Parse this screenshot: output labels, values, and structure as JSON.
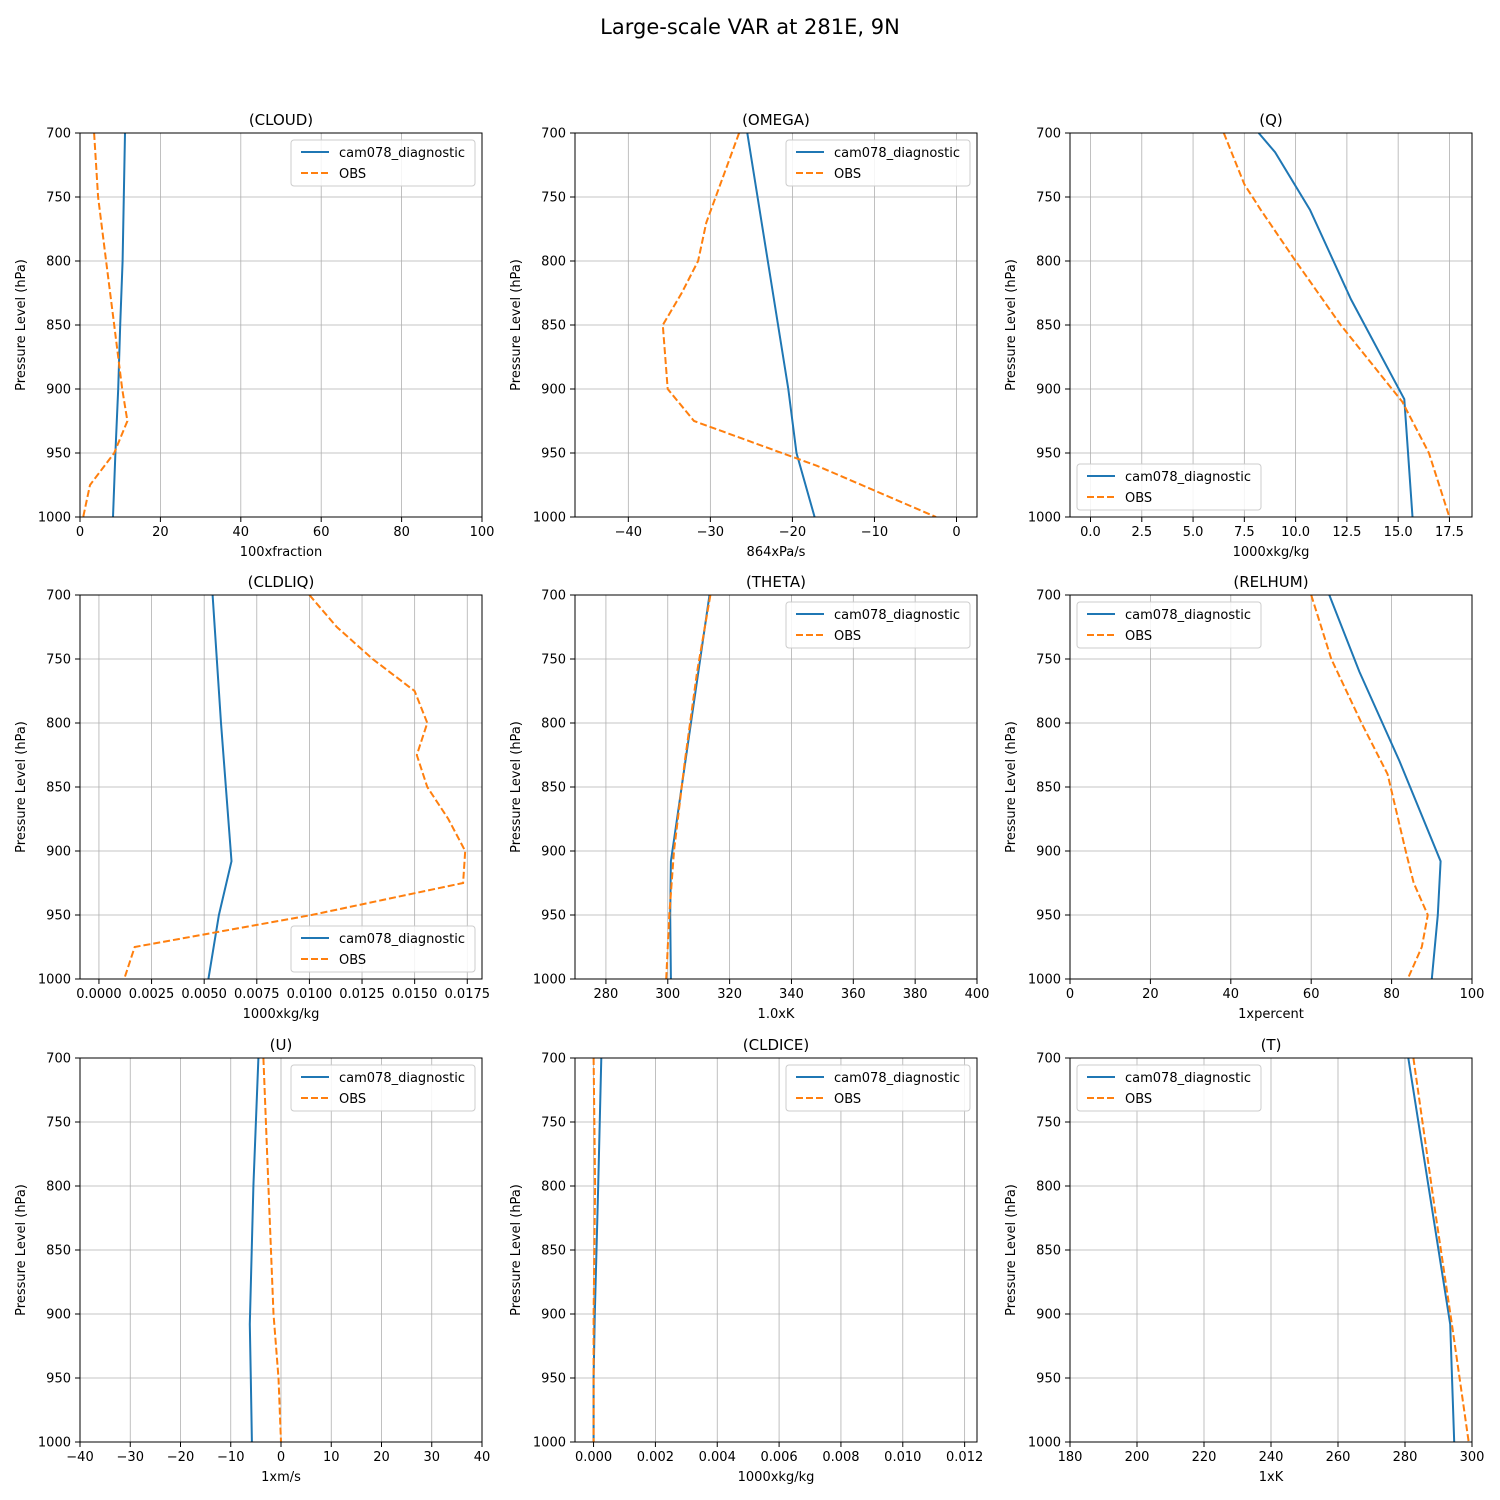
{
  "figure": {
    "suptitle": "Large-scale VAR at 281E, 9N"
  },
  "colors": {
    "model": "#1f77b4",
    "obs": "#ff7f0e",
    "grid": "#b0b0b0"
  },
  "chart_data": [
    {
      "type": "line",
      "title": "(CLOUD)",
      "xlabel": "100xfraction",
      "ylabel": "Pressure Level (hPa)",
      "xlim": [
        0,
        100
      ],
      "ylim": [
        1000,
        700
      ],
      "y_inverted": true,
      "xticks": [
        0,
        20,
        40,
        60,
        80,
        100
      ],
      "xtick_labels": [
        "0",
        "20",
        "40",
        "60",
        "80",
        "100"
      ],
      "yticks": [
        700,
        750,
        800,
        850,
        900,
        950,
        1000
      ],
      "ytick_labels": [
        "700",
        "750",
        "800",
        "850",
        "900",
        "950",
        "1000"
      ],
      "grid": true,
      "legend_loc": "upper-right",
      "series": [
        {
          "name": "cam078_diagnostic",
          "style": "solid",
          "x": [
            11.2,
            10.6,
            10.0,
            9.5,
            8.8,
            8.2
          ],
          "y": [
            700,
            800,
            850,
            900,
            950,
            1000
          ]
        },
        {
          "name": "OBS",
          "style": "dashed",
          "x": [
            3.5,
            4.5,
            6.5,
            8.5,
            10.5,
            11.8,
            8.5,
            2.5,
            0.8
          ],
          "y": [
            700,
            750,
            800,
            850,
            900,
            925,
            950,
            975,
            1000
          ]
        }
      ]
    },
    {
      "type": "line",
      "title": "(OMEGA)",
      "xlabel": "864xPa/s",
      "ylabel": "Pressure Level (hPa)",
      "xlim": [
        -46.5,
        2.5
      ],
      "ylim": [
        1000,
        700
      ],
      "y_inverted": true,
      "xticks": [
        -40,
        -30,
        -20,
        -10,
        0
      ],
      "xtick_labels": [
        "−40",
        "−30",
        "−20",
        "−10",
        "0"
      ],
      "yticks": [
        700,
        750,
        800,
        850,
        900,
        950,
        1000
      ],
      "ytick_labels": [
        "700",
        "750",
        "800",
        "850",
        "900",
        "950",
        "1000"
      ],
      "grid": true,
      "legend_loc": "upper-right",
      "series": [
        {
          "name": "cam078_diagnostic",
          "style": "solid",
          "x": [
            -25.5,
            -23.0,
            -20.5,
            -19.5,
            -17.3
          ],
          "y": [
            700,
            800,
            900,
            950,
            1000
          ]
        },
        {
          "name": "OBS",
          "style": "dashed",
          "x": [
            -26.5,
            -30.5,
            -31.5,
            -33.5,
            -35.8,
            -35.2,
            -32.0,
            -17.0,
            -2.5
          ],
          "y": [
            700,
            770,
            800,
            825,
            850,
            900,
            925,
            960,
            1000
          ]
        }
      ]
    },
    {
      "type": "line",
      "title": "(Q)",
      "xlabel": "1000xkg/kg",
      "ylabel": "Pressure Level (hPa)",
      "xlim": [
        -1.0,
        18.6
      ],
      "ylim": [
        1000,
        700
      ],
      "y_inverted": true,
      "xticks": [
        0.0,
        2.5,
        5.0,
        7.5,
        10.0,
        12.5,
        15.0,
        17.5
      ],
      "xtick_labels": [
        "0.0",
        "2.5",
        "5.0",
        "7.5",
        "10.0",
        "12.5",
        "15.0",
        "17.5"
      ],
      "yticks": [
        700,
        750,
        800,
        850,
        900,
        950,
        1000
      ],
      "ytick_labels": [
        "700",
        "750",
        "800",
        "850",
        "900",
        "950",
        "1000"
      ],
      "grid": true,
      "legend_loc": "lower-left",
      "series": [
        {
          "name": "cam078_diagnostic",
          "style": "solid",
          "x": [
            8.2,
            9.0,
            10.7,
            12.7,
            15.3,
            15.7
          ],
          "y": [
            700,
            715,
            760,
            830,
            908,
            1000
          ]
        },
        {
          "name": "OBS",
          "style": "dashed",
          "x": [
            6.5,
            7.5,
            8.3,
            10.0,
            12.2,
            15.2,
            16.5,
            17.5
          ],
          "y": [
            700,
            740,
            760,
            800,
            850,
            910,
            950,
            1000
          ]
        }
      ]
    },
    {
      "type": "line",
      "title": "(CLDLIQ)",
      "xlabel": "1000xkg/kg",
      "ylabel": "Pressure Level (hPa)",
      "xlim": [
        -0.0009,
        0.0182
      ],
      "ylim": [
        1000,
        700
      ],
      "y_inverted": true,
      "xticks": [
        0.0,
        0.0025,
        0.005,
        0.0075,
        0.01,
        0.0125,
        0.015,
        0.0175
      ],
      "xtick_labels": [
        "0.0000",
        "0.0025",
        "0.0050",
        "0.0075",
        "0.0100",
        "0.0125",
        "0.0150",
        "0.0175"
      ],
      "yticks": [
        700,
        750,
        800,
        850,
        900,
        950,
        1000
      ],
      "ytick_labels": [
        "700",
        "750",
        "800",
        "850",
        "900",
        "950",
        "1000"
      ],
      "grid": true,
      "legend_loc": "lower-right",
      "series": [
        {
          "name": "cam078_diagnostic",
          "style": "solid",
          "x": [
            0.0054,
            0.0058,
            0.0063,
            0.0057,
            0.0052
          ],
          "y": [
            700,
            800,
            908,
            950,
            1000
          ]
        },
        {
          "name": "OBS",
          "style": "dashed",
          "x": [
            0.01,
            0.0113,
            0.013,
            0.015,
            0.0156,
            0.0151,
            0.0156,
            0.0166,
            0.0174,
            0.0173,
            0.0101,
            0.0017,
            0.0012
          ],
          "y": [
            700,
            725,
            750,
            775,
            800,
            825,
            850,
            875,
            900,
            925,
            950,
            975,
            1000
          ]
        }
      ]
    },
    {
      "type": "line",
      "title": "(THETA)",
      "xlabel": "1.0xK",
      "ylabel": "Pressure Level (hPa)",
      "xlim": [
        270,
        400
      ],
      "ylim": [
        1000,
        700
      ],
      "y_inverted": true,
      "xticks": [
        280,
        300,
        320,
        340,
        360,
        380,
        400
      ],
      "xtick_labels": [
        "280",
        "300",
        "320",
        "340",
        "360",
        "380",
        "400"
      ],
      "yticks": [
        700,
        750,
        800,
        850,
        900,
        950,
        1000
      ],
      "ytick_labels": [
        "700",
        "750",
        "800",
        "850",
        "900",
        "950",
        "1000"
      ],
      "grid": true,
      "legend_loc": "upper-right",
      "series": [
        {
          "name": "cam078_diagnostic",
          "style": "solid",
          "x": [
            313.5,
            301.0,
            300.8,
            301.0
          ],
          "y": [
            700,
            908,
            950,
            1000
          ]
        },
        {
          "name": "OBS",
          "style": "dashed",
          "x": [
            313.8,
            309.5,
            305.5,
            302.0,
            300.5,
            299.5
          ],
          "y": [
            700,
            760,
            830,
            900,
            950,
            1000
          ]
        }
      ]
    },
    {
      "type": "line",
      "title": "(RELHUM)",
      "xlabel": "1xpercent",
      "ylabel": "Pressure Level (hPa)",
      "xlim": [
        0,
        100
      ],
      "ylim": [
        1000,
        700
      ],
      "y_inverted": true,
      "xticks": [
        0,
        20,
        40,
        60,
        80,
        100
      ],
      "xtick_labels": [
        "0",
        "20",
        "40",
        "60",
        "80",
        "100"
      ],
      "yticks": [
        700,
        750,
        800,
        850,
        900,
        950,
        1000
      ],
      "ytick_labels": [
        "700",
        "750",
        "800",
        "850",
        "900",
        "950",
        "1000"
      ],
      "grid": true,
      "legend_loc": "upper-left",
      "series": [
        {
          "name": "cam078_diagnostic",
          "style": "solid",
          "x": [
            64.5,
            72.0,
            82.0,
            92.2,
            91.5,
            90.0
          ],
          "y": [
            700,
            760,
            830,
            908,
            950,
            1000
          ]
        },
        {
          "name": "OBS",
          "style": "dashed",
          "x": [
            60.0,
            65.0,
            72.5,
            79.0,
            83.5,
            85.5,
            89.0,
            87.5,
            84.0
          ],
          "y": [
            700,
            750,
            800,
            840,
            900,
            925,
            950,
            975,
            1000
          ]
        }
      ]
    },
    {
      "type": "line",
      "title": "(U)",
      "xlabel": "1xm/s",
      "ylabel": "Pressure Level (hPa)",
      "xlim": [
        -40,
        40
      ],
      "ylim": [
        1000,
        700
      ],
      "y_inverted": true,
      "xticks": [
        -40,
        -30,
        -20,
        -10,
        0,
        10,
        20,
        30,
        40
      ],
      "xtick_labels": [
        "−40",
        "−30",
        "−20",
        "−10",
        "0",
        "10",
        "20",
        "30",
        "40"
      ],
      "yticks": [
        700,
        750,
        800,
        850,
        900,
        950,
        1000
      ],
      "ytick_labels": [
        "700",
        "750",
        "800",
        "850",
        "900",
        "950",
        "1000"
      ],
      "grid": true,
      "legend_loc": "upper-right",
      "series": [
        {
          "name": "cam078_diagnostic",
          "style": "solid",
          "x": [
            -4.5,
            -5.5,
            -6.2,
            -6.0,
            -5.8
          ],
          "y": [
            700,
            800,
            908,
            950,
            1000
          ]
        },
        {
          "name": "OBS",
          "style": "dashed",
          "x": [
            -3.5,
            -2.5,
            -1.5,
            -0.5,
            0.0
          ],
          "y": [
            700,
            800,
            900,
            950,
            1000
          ]
        }
      ]
    },
    {
      "type": "line",
      "title": "(CLDICE)",
      "xlabel": "1000xkg/kg",
      "ylabel": "Pressure Level (hPa)",
      "xlim": [
        -0.0006,
        0.0124
      ],
      "ylim": [
        1000,
        700
      ],
      "y_inverted": true,
      "xticks": [
        0.0,
        0.002,
        0.004,
        0.006,
        0.008,
        0.01,
        0.012
      ],
      "xtick_labels": [
        "0.000",
        "0.002",
        "0.004",
        "0.006",
        "0.008",
        "0.010",
        "0.012"
      ],
      "yticks": [
        700,
        750,
        800,
        850,
        900,
        950,
        1000
      ],
      "ytick_labels": [
        "700",
        "750",
        "800",
        "850",
        "900",
        "950",
        "1000"
      ],
      "grid": true,
      "legend_loc": "upper-right",
      "series": [
        {
          "name": "cam078_diagnostic",
          "style": "solid",
          "x": [
            0.00025,
            0.00015,
            4e-05,
            0.0,
            0.0
          ],
          "y": [
            700,
            800,
            900,
            950,
            1000
          ]
        },
        {
          "name": "OBS",
          "style": "dashed",
          "x": [
            0.0,
            5e-05,
            0.0,
            0.0,
            0.0
          ],
          "y": [
            700,
            800,
            900,
            950,
            1000
          ]
        }
      ]
    },
    {
      "type": "line",
      "title": "(T)",
      "xlabel": "1xK",
      "ylabel": "Pressure Level (hPa)",
      "xlim": [
        180,
        300
      ],
      "ylim": [
        1000,
        700
      ],
      "y_inverted": true,
      "xticks": [
        180,
        200,
        220,
        240,
        260,
        280,
        300
      ],
      "xtick_labels": [
        "180",
        "200",
        "220",
        "240",
        "260",
        "280",
        "300"
      ],
      "yticks": [
        700,
        750,
        800,
        850,
        900,
        950,
        1000
      ],
      "ytick_labels": [
        "700",
        "750",
        "800",
        "850",
        "900",
        "950",
        "1000"
      ],
      "grid": true,
      "legend_loc": "upper-left",
      "series": [
        {
          "name": "cam078_diagnostic",
          "style": "solid",
          "x": [
            281.0,
            293.5,
            294.7
          ],
          "y": [
            700,
            908,
            1000
          ]
        },
        {
          "name": "OBS",
          "style": "dashed",
          "x": [
            282.5,
            289.0,
            294.0,
            299.0
          ],
          "y": [
            700,
            820,
            908,
            1000
          ]
        }
      ]
    }
  ]
}
